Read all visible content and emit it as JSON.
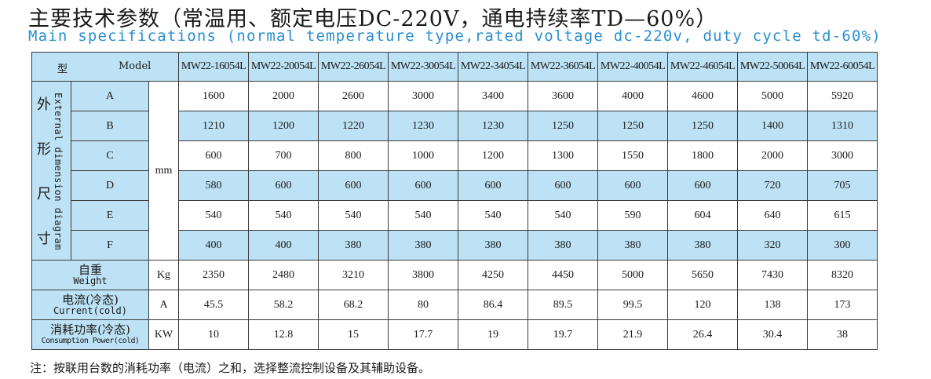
{
  "title_cn": "主要技术参数（常温用、额定电压DC-220V，通电持续率TD—60%）",
  "title_en": "Main specifications (normal temperature type,rated voltage dc-220v, duty cycle td-60%)",
  "table": {
    "header_cn": "型",
    "header_en": "Model",
    "models": [
      "MW22-16054L",
      "MW22-20054L",
      "MW22-26054L",
      "MW22-30054L",
      "MW22-34054L",
      "MW22-36054L",
      "MW22-40054L",
      "MW22-46054L",
      "MW22-50064L",
      "MW22-60054L"
    ],
    "dim_group": {
      "cn_chars": [
        "外",
        "形",
        "尺",
        "寸"
      ],
      "en": "External dimension diagram",
      "unit": "mm",
      "rows": [
        {
          "label": "A",
          "values": [
            "1600",
            "2000",
            "2600",
            "3000",
            "3400",
            "3600",
            "4000",
            "4600",
            "5000",
            "5920"
          ]
        },
        {
          "label": "B",
          "values": [
            "1210",
            "1200",
            "1220",
            "1230",
            "1230",
            "1250",
            "1250",
            "1250",
            "1400",
            "1310"
          ]
        },
        {
          "label": "C",
          "values": [
            "600",
            "700",
            "800",
            "1000",
            "1200",
            "1300",
            "1550",
            "1800",
            "2000",
            "3000"
          ]
        },
        {
          "label": "D",
          "values": [
            "580",
            "600",
            "600",
            "600",
            "600",
            "600",
            "600",
            "600",
            "720",
            "705"
          ]
        },
        {
          "label": "E",
          "values": [
            "540",
            "540",
            "540",
            "540",
            "540",
            "540",
            "590",
            "604",
            "640",
            "615"
          ]
        },
        {
          "label": "F",
          "values": [
            "400",
            "400",
            "380",
            "380",
            "380",
            "380",
            "380",
            "380",
            "320",
            "300"
          ]
        }
      ]
    },
    "other_rows": [
      {
        "label_cn": "自重",
        "label_en": "Weight",
        "unit": "Kg",
        "values": [
          "2350",
          "2480",
          "3210",
          "3800",
          "4250",
          "4450",
          "5000",
          "5650",
          "7430",
          "8320"
        ]
      },
      {
        "label_cn": "电流(冷态)",
        "label_en": "Current(cold)",
        "unit": "A",
        "values": [
          "45.5",
          "58.2",
          "68.2",
          "80",
          "86.4",
          "89.5",
          "99.5",
          "120",
          "138",
          "173"
        ]
      },
      {
        "label_cn": "消耗功率(冷态)",
        "label_en": "Consumption Power(cold)",
        "unit": "KW",
        "values": [
          "10",
          "12.8",
          "15",
          "17.7",
          "19",
          "19.7",
          "21.9",
          "26.4",
          "30.4",
          "38"
        ]
      }
    ]
  },
  "note": "注：按联用台数的消耗功率（电流）之和，选择整流控制设备及其辅助设备。"
}
